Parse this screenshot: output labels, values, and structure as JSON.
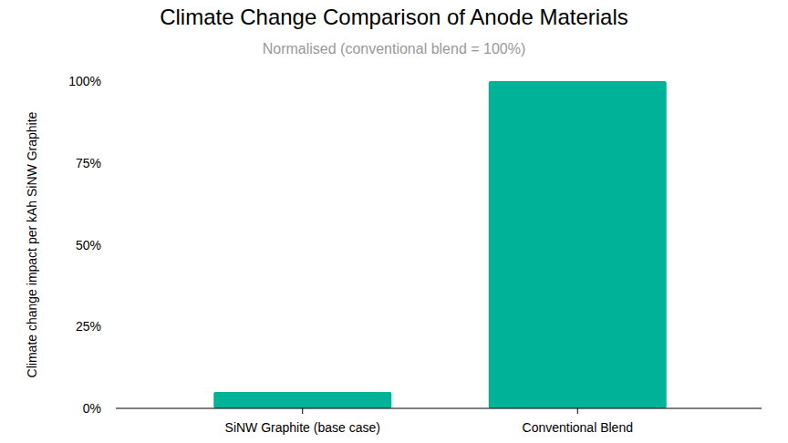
{
  "chart_data": {
    "type": "bar",
    "title": "Climate Change Comparison of Anode Materials",
    "subtitle": "Normalised (conventional blend = 100%)",
    "y_label": "Climate change impact per kAh SiNW Graphite",
    "categories": [
      "SiNW Graphite (base case)",
      "Conventional Blend"
    ],
    "values": [
      5,
      100
    ],
    "color": "#00b398",
    "ylim": [
      0,
      100
    ],
    "yticks": [
      {
        "value": 0,
        "label": "0%"
      },
      {
        "value": 25,
        "label": "25%"
      },
      {
        "value": 50,
        "label": "50%"
      },
      {
        "value": 75,
        "label": "75%"
      },
      {
        "value": 100,
        "label": "100%"
      }
    ],
    "grid": false
  }
}
